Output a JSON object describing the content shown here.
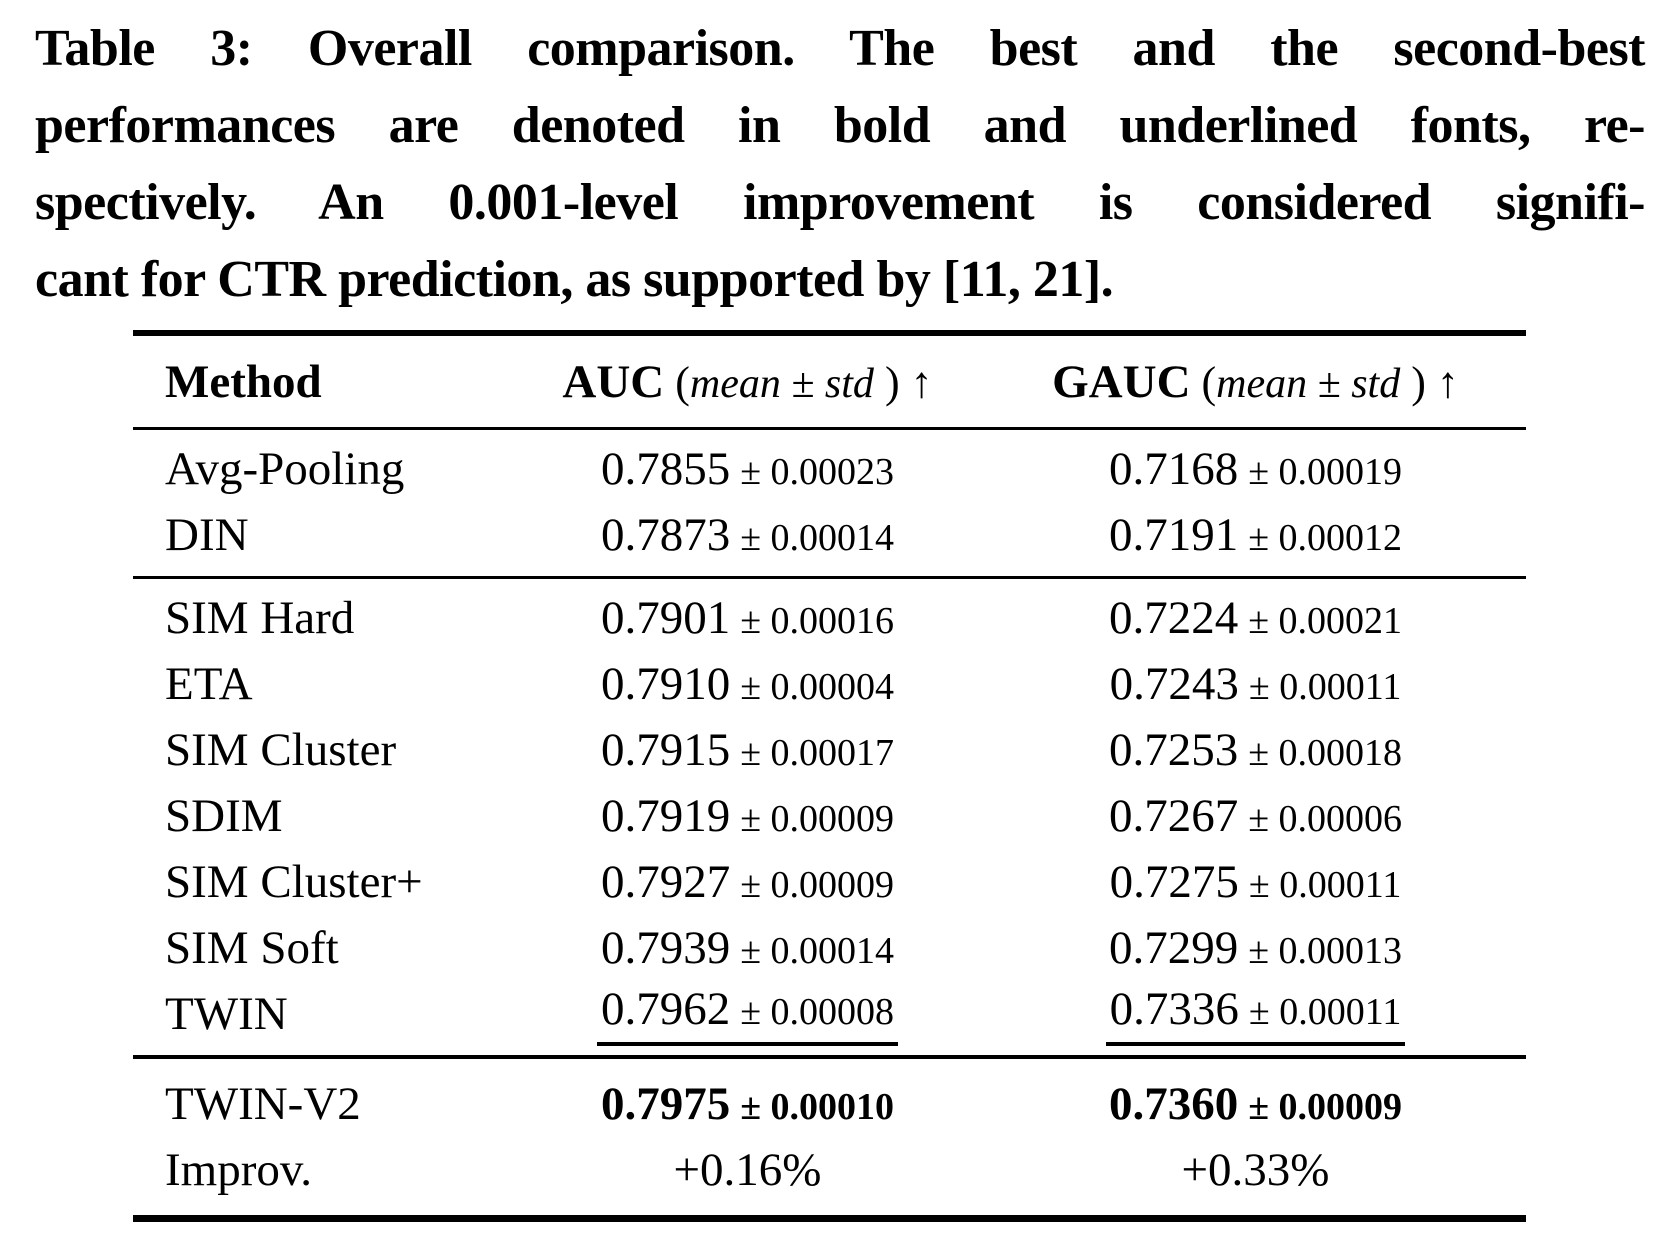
{
  "colors": {
    "text": "#000000",
    "background": "#ffffff"
  },
  "caption": {
    "lines": [
      "Table 3: Overall comparison. The best and the second-best",
      "performances are denoted in bold and underlined fonts, re-",
      "spectively. An 0.001-level improvement is considered signifi-",
      "cant for CTR prediction, as supported by [11, 21]."
    ]
  },
  "table": {
    "header": {
      "method": "Method",
      "auc": {
        "name": "AUC",
        "open": " (",
        "italic": "mean ± std",
        "close": " ) ",
        "arrow": "↑"
      },
      "gauc": {
        "name": "GAUC",
        "open": " (",
        "italic": "mean ± std",
        "close": " ) ",
        "arrow": "↑"
      }
    },
    "rows": [
      {
        "method": "Avg-Pooling",
        "auc_mean": "0.7855",
        "auc_std": "± 0.00023",
        "gauc_mean": "0.7168",
        "gauc_std": "± 0.00019",
        "emphasis": "none"
      },
      {
        "method": "DIN",
        "auc_mean": "0.7873",
        "auc_std": "± 0.00014",
        "gauc_mean": "0.7191",
        "gauc_std": "± 0.00012",
        "emphasis": "none"
      },
      {
        "method": "SIM Hard",
        "auc_mean": "0.7901",
        "auc_std": "± 0.00016",
        "gauc_mean": "0.7224",
        "gauc_std": "± 0.00021",
        "emphasis": "none"
      },
      {
        "method": "ETA",
        "auc_mean": "0.7910",
        "auc_std": "± 0.00004",
        "gauc_mean": "0.7243",
        "gauc_std": "± 0.00011",
        "emphasis": "none"
      },
      {
        "method": "SIM Cluster",
        "auc_mean": "0.7915",
        "auc_std": "± 0.00017",
        "gauc_mean": "0.7253",
        "gauc_std": "± 0.00018",
        "emphasis": "none"
      },
      {
        "method": "SDIM",
        "auc_mean": "0.7919",
        "auc_std": "± 0.00009",
        "gauc_mean": "0.7267",
        "gauc_std": "± 0.00006",
        "emphasis": "none"
      },
      {
        "method": "SIM Cluster+",
        "auc_mean": "0.7927",
        "auc_std": "± 0.00009",
        "gauc_mean": "0.7275",
        "gauc_std": "± 0.00011",
        "emphasis": "none"
      },
      {
        "method": "SIM Soft",
        "auc_mean": "0.7939",
        "auc_std": "± 0.00014",
        "gauc_mean": "0.7299",
        "gauc_std": "± 0.00013",
        "emphasis": "none"
      },
      {
        "method": "TWIN",
        "auc_mean": "0.7962",
        "auc_std": "± 0.00008",
        "gauc_mean": "0.7336",
        "gauc_std": "± 0.00011",
        "emphasis": "underline"
      },
      {
        "method": "TWIN-V2",
        "auc_mean": "0.7975",
        "auc_std": "± 0.00010",
        "gauc_mean": "0.7360",
        "gauc_std": "± 0.00009",
        "emphasis": "bold"
      },
      {
        "method": "Improv.",
        "auc_mean": "+0.16%",
        "gauc_mean": "+0.33%",
        "emphasis": "none"
      }
    ]
  }
}
